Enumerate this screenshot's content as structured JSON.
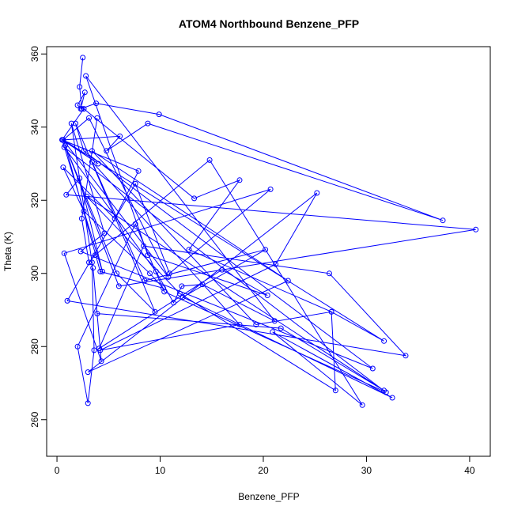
{
  "chart_data": {
    "type": "line",
    "title": "ATOM4 Northbound Benzene_PFP",
    "xlabel": "Benzene_PFP",
    "ylabel": "Theta (K)",
    "xlim": [
      -1,
      42
    ],
    "ylim": [
      250,
      362
    ],
    "x_ticks": [
      0,
      10,
      20,
      30,
      40
    ],
    "y_ticks": [
      260,
      280,
      300,
      320,
      340,
      360
    ],
    "line_color": "#0000ff",
    "marker": "open-circle",
    "grid": false,
    "series": [
      {
        "x": [
          2.5,
          2.2,
          2.4,
          2.0,
          2.7,
          2.3,
          3.8,
          9.9,
          37.4,
          8.8,
          4.8,
          6.1,
          0.6,
          3.1,
          10.8,
          0.6,
          4.0,
          0.5,
          2.6,
          13.3,
          17.7,
          12.8,
          26.6,
          31.7,
          0.6,
          6.0,
          40.6,
          0.9,
          2.2,
          4.4,
          0.5,
          7.9,
          5.6,
          0.6,
          2.6,
          9.0,
          10.3,
          4.2,
          0.8,
          5.8,
          9.5,
          1.8,
          2.6,
          30.6,
          2.3,
          4.6,
          1.4,
          3.4,
          3.6,
          3.0,
          2.0,
          7.6,
          10.4,
          31.9,
          0.7,
          9.6,
          11.3,
          12.1,
          14.1,
          21.1,
          2.8,
          8.8,
          20.4,
          16.0,
          4.1,
          8.4,
          26.4,
          33.8,
          1.0,
          7.6,
          10.9,
          20.7,
          0.7,
          4.3,
          3.5,
          3.9,
          21.7,
          31.7,
          2.9,
          11.9,
          27.0,
          26.6,
          19.3,
          3.4,
          22.4,
          3.0,
          25.2,
          21.2,
          4.2,
          17.7,
          3.4,
          8.5,
          20.2,
          12.2,
          32.5,
          20.9,
          29.6,
          14.8,
          3.7,
          3.1,
          2.4,
          3.9
        ],
        "y": [
          359.0,
          351.0,
          345.0,
          346.0,
          349.5,
          345.0,
          346.5,
          343.5,
          314.5,
          341.0,
          333.5,
          337.5,
          336.5,
          342.5,
          299.0,
          336.5,
          330.0,
          336.5,
          345.0,
          320.5,
          325.5,
          306.5,
          289.5,
          281.5,
          336.5,
          296.5,
          312.0,
          321.5,
          326.0,
          300.5,
          336.5,
          328.0,
          315.0,
          329.0,
          317.0,
          300.0,
          296.0,
          300.5,
          335.0,
          300.0,
          289.5,
          341.0,
          333.5,
          274.0,
          306.0,
          311.0,
          341.0,
          303.0,
          279.0,
          264.5,
          280.0,
          313.5,
          295.0,
          267.5,
          334.5,
          300.5,
          292.0,
          296.5,
          297.0,
          287.0,
          354.0,
          305.0,
          294.0,
          301.0,
          279.5,
          307.5,
          300.0,
          277.5,
          292.5,
          324.5,
          300.0,
          323.0,
          305.5,
          276.0,
          301.5,
          289.0,
          285.0,
          268.0,
          321.0,
          294.5,
          268.0,
          289.5,
          286.0,
          333.5,
          298.0,
          273.0,
          322.0,
          302.5,
          279.0,
          286.0,
          330.5,
          298.0,
          306.5,
          293.5,
          266.0,
          284.0,
          264.0,
          331.0,
          305.0,
          303.0,
          315.0,
          342.5
        ]
      }
    ]
  }
}
